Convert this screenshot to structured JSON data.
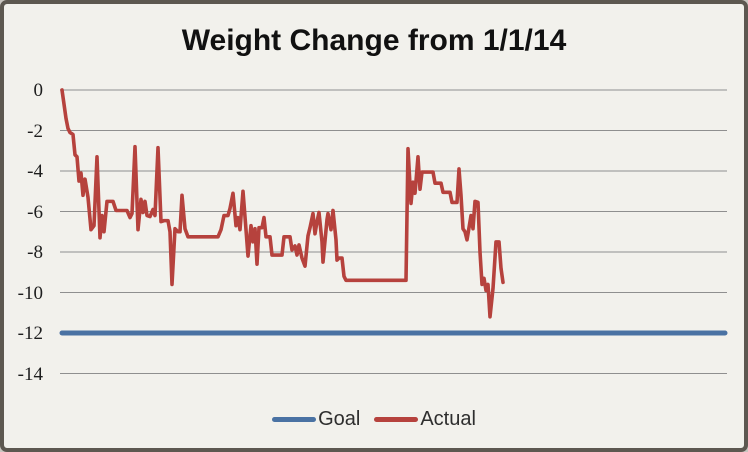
{
  "title": "Weight Change from 1/1/14",
  "colors": {
    "goal": "#4a72a3",
    "actual": "#b6423d",
    "grid": "#8f8f8f",
    "background": "#f2f1ec",
    "frame_border": "#5d5850"
  },
  "legend": {
    "goal_label": "Goal",
    "actual_label": "Actual"
  },
  "chart_data": {
    "type": "line",
    "title": "Weight Change from 1/1/14",
    "xlabel": "",
    "ylabel": "",
    "ylim": [
      -14,
      0
    ],
    "yticks": [
      0,
      -2,
      -4,
      -6,
      -8,
      -10,
      -12,
      -14
    ],
    "x_axis_labels_visible": false,
    "grid": "horizontal",
    "legend_position": "bottom",
    "x_units": "day index from 1/1/14",
    "series": [
      {
        "name": "Goal",
        "type": "constant",
        "value": -12
      },
      {
        "name": "Actual",
        "type": "points",
        "points": [
          [
            0,
            0
          ],
          [
            2,
            -0.7
          ],
          [
            4,
            -1.4
          ],
          [
            6,
            -1.9
          ],
          [
            8,
            -2.1
          ],
          [
            11,
            -2.2
          ],
          [
            13,
            -3.2
          ],
          [
            15,
            -3.3
          ],
          [
            17,
            -4.5
          ],
          [
            19,
            -4.1
          ],
          [
            21,
            -5.2
          ],
          [
            23,
            -4.4
          ],
          [
            26,
            -5.3
          ],
          [
            29,
            -6.9
          ],
          [
            32,
            -6.7
          ],
          [
            35,
            -3.3
          ],
          [
            38,
            -7.3
          ],
          [
            40,
            -6.2
          ],
          [
            42,
            -7.0
          ],
          [
            45,
            -5.5
          ],
          [
            51,
            -5.5
          ],
          [
            54,
            -5.95
          ],
          [
            65,
            -5.95
          ],
          [
            68,
            -6.3
          ],
          [
            70,
            -6.1
          ],
          [
            73,
            -2.8
          ],
          [
            76,
            -6.9
          ],
          [
            79,
            -5.4
          ],
          [
            81,
            -6.05
          ],
          [
            83,
            -5.5
          ],
          [
            85,
            -6.2
          ],
          [
            88,
            -6.25
          ],
          [
            91,
            -5.9
          ],
          [
            93,
            -6.2
          ],
          [
            96,
            -2.85
          ],
          [
            99,
            -6.5
          ],
          [
            102,
            -6.45
          ],
          [
            106,
            -6.45
          ],
          [
            108,
            -7.0
          ],
          [
            110,
            -9.6
          ],
          [
            113,
            -6.85
          ],
          [
            116,
            -7.0
          ],
          [
            118,
            -7.0
          ],
          [
            120,
            -5.2
          ],
          [
            123,
            -6.85
          ],
          [
            126,
            -7.25
          ],
          [
            156,
            -7.25
          ],
          [
            159,
            -6.9
          ],
          [
            162,
            -6.2
          ],
          [
            166,
            -6.2
          ],
          [
            168,
            -5.85
          ],
          [
            171,
            -5.1
          ],
          [
            174,
            -6.7
          ],
          [
            176,
            -6.3
          ],
          [
            178,
            -6.9
          ],
          [
            181,
            -5.0
          ],
          [
            184,
            -6.9
          ],
          [
            186,
            -8.2
          ],
          [
            189,
            -6.7
          ],
          [
            191,
            -7.5
          ],
          [
            193,
            -6.85
          ],
          [
            195,
            -8.6
          ],
          [
            197,
            -6.8
          ],
          [
            200,
            -6.8
          ],
          [
            202,
            -6.3
          ],
          [
            204,
            -7.25
          ],
          [
            208,
            -7.25
          ],
          [
            210,
            -8.15
          ],
          [
            220,
            -8.15
          ],
          [
            222,
            -7.25
          ],
          [
            228,
            -7.25
          ],
          [
            230,
            -7.9
          ],
          [
            233,
            -7.7
          ],
          [
            235,
            -8.15
          ],
          [
            237,
            -7.65
          ],
          [
            240,
            -8.3
          ],
          [
            243,
            -8.7
          ],
          [
            246,
            -7.2
          ],
          [
            248,
            -6.8
          ],
          [
            251,
            -6.1
          ],
          [
            253,
            -7.1
          ],
          [
            255,
            -6.5
          ],
          [
            257,
            -6.05
          ],
          [
            260,
            -7.5
          ],
          [
            261,
            -8.5
          ],
          [
            265,
            -6.4
          ],
          [
            266,
            -6.1
          ],
          [
            269,
            -6.9
          ],
          [
            271,
            -5.95
          ],
          [
            274,
            -7.4
          ],
          [
            275,
            -8.4
          ],
          [
            277,
            -8.3
          ],
          [
            280,
            -8.3
          ],
          [
            282,
            -9.2
          ],
          [
            284,
            -9.4
          ],
          [
            344,
            -9.4
          ],
          [
            346,
            -2.9
          ],
          [
            349,
            -5.6
          ],
          [
            351,
            -4.55
          ],
          [
            353,
            -5.1
          ],
          [
            356,
            -3.3
          ],
          [
            358,
            -4.9
          ],
          [
            360,
            -4.05
          ],
          [
            371,
            -4.05
          ],
          [
            373,
            -4.6
          ],
          [
            379,
            -4.6
          ],
          [
            381,
            -5.05
          ],
          [
            388,
            -5.05
          ],
          [
            390,
            -5.55
          ],
          [
            395,
            -5.55
          ],
          [
            397,
            -3.9
          ],
          [
            399,
            -5.2
          ],
          [
            401,
            -6.85
          ],
          [
            403,
            -7.0
          ],
          [
            405,
            -7.4
          ],
          [
            409,
            -6.2
          ],
          [
            411,
            -6.85
          ],
          [
            413,
            -5.5
          ],
          [
            416,
            -5.55
          ],
          [
            418,
            -8.0
          ],
          [
            420,
            -9.6
          ],
          [
            422,
            -9.3
          ],
          [
            424,
            -9.9
          ],
          [
            426,
            -9.6
          ],
          [
            428,
            -11.2
          ],
          [
            431,
            -9.8
          ],
          [
            434,
            -7.5
          ],
          [
            437,
            -7.5
          ],
          [
            439,
            -8.8
          ],
          [
            441,
            -9.5
          ]
        ]
      }
    ]
  }
}
